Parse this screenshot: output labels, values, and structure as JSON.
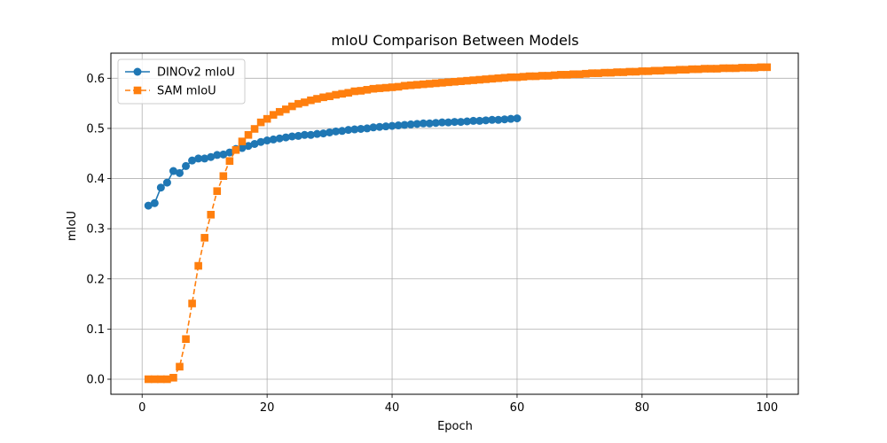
{
  "chart_data": {
    "type": "line",
    "title": "mIoU Comparison Between Models",
    "xlabel": "Epoch",
    "ylabel": "mIoU",
    "xlim": [
      -5,
      105
    ],
    "ylim": [
      -0.03,
      0.65
    ],
    "xticks": [
      0,
      20,
      40,
      60,
      80,
      100
    ],
    "yticks": [
      0.0,
      0.1,
      0.2,
      0.3,
      0.4,
      0.5,
      0.6
    ],
    "ytick_labels": [
      "0.0",
      "0.1",
      "0.2",
      "0.3",
      "0.4",
      "0.5",
      "0.6"
    ],
    "grid": true,
    "legend_position": "top-left",
    "series": [
      {
        "name": "DINOv2 mIoU",
        "color": "#1f77b4",
        "marker": "circle",
        "linestyle": "solid",
        "x": [
          1,
          2,
          3,
          4,
          5,
          6,
          7,
          8,
          9,
          10,
          11,
          12,
          13,
          14,
          15,
          16,
          17,
          18,
          19,
          20,
          21,
          22,
          23,
          24,
          25,
          26,
          27,
          28,
          29,
          30,
          31,
          32,
          33,
          34,
          35,
          36,
          37,
          38,
          39,
          40,
          41,
          42,
          43,
          44,
          45,
          46,
          47,
          48,
          49,
          50,
          51,
          52,
          53,
          54,
          55,
          56,
          57,
          58,
          59,
          60
        ],
        "values": [
          0.346,
          0.351,
          0.382,
          0.392,
          0.415,
          0.411,
          0.425,
          0.436,
          0.44,
          0.44,
          0.443,
          0.447,
          0.448,
          0.452,
          0.459,
          0.461,
          0.465,
          0.469,
          0.473,
          0.476,
          0.478,
          0.48,
          0.482,
          0.484,
          0.485,
          0.487,
          0.487,
          0.489,
          0.49,
          0.492,
          0.494,
          0.495,
          0.497,
          0.498,
          0.499,
          0.5,
          0.502,
          0.503,
          0.504,
          0.505,
          0.506,
          0.507,
          0.508,
          0.509,
          0.51,
          0.51,
          0.511,
          0.512,
          0.512,
          0.513,
          0.513,
          0.514,
          0.515,
          0.515,
          0.516,
          0.517,
          0.517,
          0.518,
          0.519,
          0.52
        ]
      },
      {
        "name": "SAM mIoU",
        "color": "#ff7f0e",
        "marker": "square",
        "linestyle": "dashed",
        "x": [
          1,
          2,
          3,
          4,
          5,
          6,
          7,
          8,
          9,
          10,
          11,
          12,
          13,
          14,
          15,
          16,
          17,
          18,
          19,
          20,
          21,
          22,
          23,
          24,
          25,
          26,
          27,
          28,
          29,
          30,
          31,
          32,
          33,
          34,
          35,
          36,
          37,
          38,
          39,
          40,
          41,
          42,
          43,
          44,
          45,
          46,
          47,
          48,
          49,
          50,
          51,
          52,
          53,
          54,
          55,
          56,
          57,
          58,
          59,
          60,
          61,
          62,
          63,
          64,
          65,
          66,
          67,
          68,
          69,
          70,
          71,
          72,
          73,
          74,
          75,
          76,
          77,
          78,
          79,
          80,
          81,
          82,
          83,
          84,
          85,
          86,
          87,
          88,
          89,
          90,
          91,
          92,
          93,
          94,
          95,
          96,
          97,
          98,
          99,
          100
        ],
        "values": [
          0.0,
          0.0,
          0.0,
          0.0,
          0.003,
          0.025,
          0.08,
          0.151,
          0.226,
          0.282,
          0.328,
          0.375,
          0.405,
          0.435,
          0.457,
          0.474,
          0.487,
          0.499,
          0.512,
          0.519,
          0.527,
          0.533,
          0.538,
          0.544,
          0.549,
          0.552,
          0.556,
          0.559,
          0.562,
          0.564,
          0.567,
          0.569,
          0.571,
          0.574,
          0.575,
          0.577,
          0.579,
          0.58,
          0.581,
          0.582,
          0.583,
          0.585,
          0.586,
          0.587,
          0.588,
          0.589,
          0.59,
          0.591,
          0.592,
          0.593,
          0.594,
          0.595,
          0.596,
          0.597,
          0.598,
          0.599,
          0.6,
          0.601,
          0.602,
          0.602,
          0.603,
          0.604,
          0.604,
          0.605,
          0.605,
          0.606,
          0.607,
          0.607,
          0.608,
          0.608,
          0.609,
          0.61,
          0.61,
          0.611,
          0.611,
          0.612,
          0.612,
          0.613,
          0.613,
          0.614,
          0.614,
          0.615,
          0.615,
          0.616,
          0.616,
          0.617,
          0.617,
          0.618,
          0.618,
          0.619,
          0.619,
          0.619,
          0.62,
          0.62,
          0.62,
          0.621,
          0.621,
          0.621,
          0.622,
          0.622
        ]
      }
    ]
  }
}
